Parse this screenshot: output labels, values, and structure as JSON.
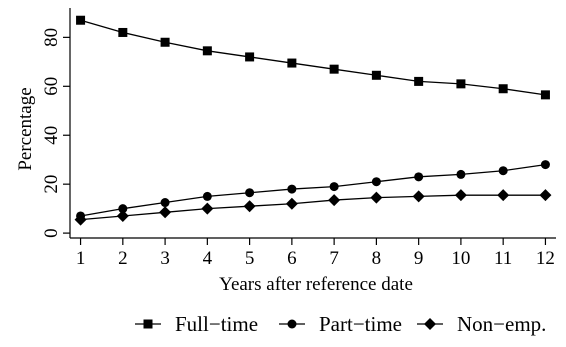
{
  "chart_data": {
    "type": "line",
    "title": "",
    "xlabel": "Years after reference date",
    "ylabel": "Percentage",
    "x": [
      1,
      2,
      3,
      4,
      5,
      6,
      7,
      8,
      9,
      10,
      11,
      12
    ],
    "xticks": [
      "1",
      "2",
      "3",
      "4",
      "5",
      "6",
      "7",
      "8",
      "9",
      "10",
      "11",
      "12"
    ],
    "yticks": [
      "0",
      "20",
      "40",
      "60",
      "80"
    ],
    "ylim": [
      -2,
      92
    ],
    "xlim": [
      0.75,
      12.25
    ],
    "grid": false,
    "legend_position": "bottom",
    "series": [
      {
        "name": "Full−time",
        "marker": "square",
        "color": "#000000",
        "values": [
          87,
          82,
          78,
          74.5,
          72,
          69.5,
          67,
          64.5,
          62,
          61,
          59,
          56.5
        ]
      },
      {
        "name": "Part−time",
        "marker": "circle",
        "color": "#000000",
        "values": [
          7,
          10,
          12.5,
          15,
          16.5,
          18,
          19,
          21,
          23,
          24,
          25.5,
          28
        ]
      },
      {
        "name": "Non−emp.",
        "marker": "diamond",
        "color": "#000000",
        "values": [
          5.5,
          7,
          8.5,
          10,
          11,
          12,
          13.5,
          14.5,
          15,
          15.5,
          15.5,
          15.5
        ]
      }
    ]
  }
}
